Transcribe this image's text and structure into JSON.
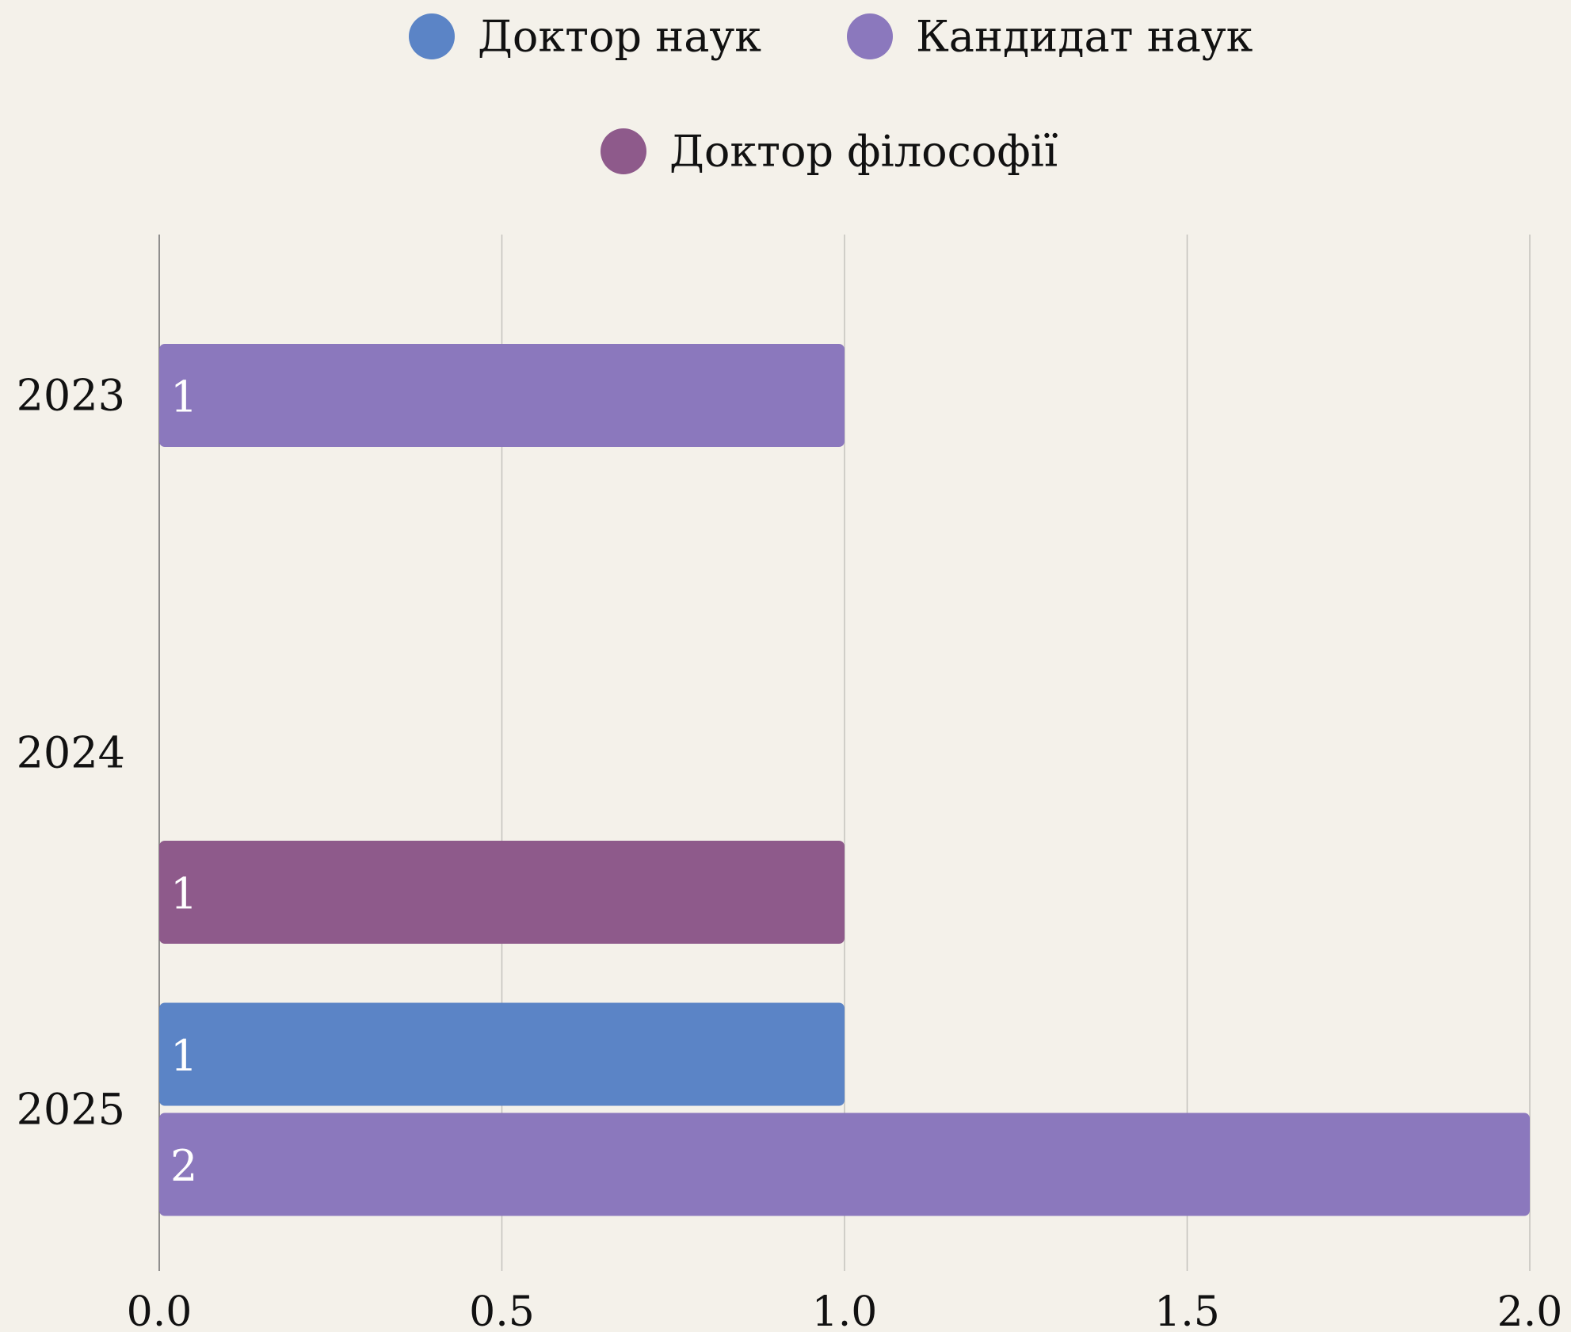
{
  "chart_data": {
    "type": "bar",
    "orientation": "horizontal",
    "categories": [
      "2023",
      "2024",
      "2025"
    ],
    "series": [
      {
        "name": "Доктор наук",
        "color": "#5b84c6",
        "values": [
          0,
          0,
          1
        ]
      },
      {
        "name": "Кандидат наук",
        "color": "#8b78bd",
        "values": [
          1,
          0,
          2
        ]
      },
      {
        "name": "Доктор філософії",
        "color": "#8e5a8b",
        "values": [
          0,
          1,
          0
        ]
      }
    ],
    "data_labels": [
      {
        "category": "2023",
        "series": "Кандидат наук",
        "text": "1"
      },
      {
        "category": "2024",
        "series": "Доктор філософії",
        "text": "1"
      },
      {
        "category": "2025",
        "series": "Доктор наук",
        "text": "1"
      },
      {
        "category": "2025",
        "series": "Кандидат наук",
        "text": "2"
      }
    ],
    "xlim": [
      0,
      2
    ],
    "xticks": [
      "0.0",
      "0.5",
      "1.0",
      "1.5",
      "2.0"
    ],
    "grid": true,
    "legend_position": "top",
    "title": "",
    "xlabel": "",
    "ylabel": ""
  }
}
